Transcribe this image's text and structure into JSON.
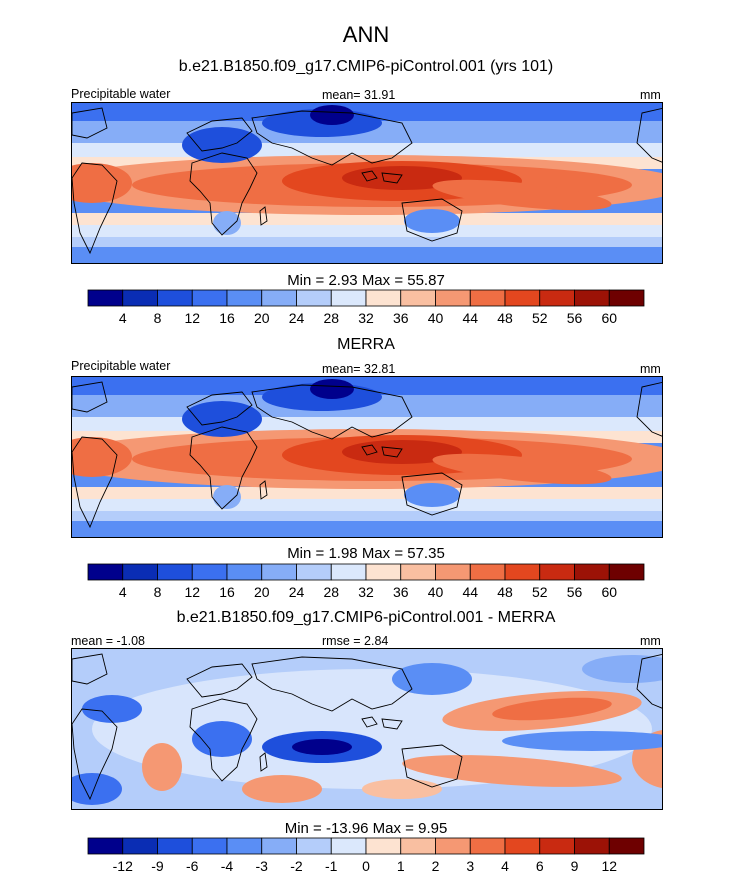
{
  "figure_title": "ANN",
  "chart_data": [
    {
      "type": "heatmap",
      "title": "b.e21.B1850.f09_g17.CMIP6-piControl.001 (yrs 101)",
      "left_label": "Precipitable water",
      "center_label": "mean=  31.91",
      "units": "mm",
      "stats": "Min =   2.93 Max =  55.87",
      "colorbar_ticks": [
        "4",
        "8",
        "12",
        "16",
        "20",
        "24",
        "28",
        "32",
        "36",
        "40",
        "44",
        "48",
        "52",
        "56",
        "60"
      ],
      "colors": [
        "#00008c",
        "#0a2db4",
        "#1e4fdc",
        "#3b70f0",
        "#5a8ef5",
        "#86adf7",
        "#b4cdfa",
        "#dbe8fc",
        "#fde3d1",
        "#f9bfa1",
        "#f59873",
        "#ef6e44",
        "#e3471f",
        "#c92a11",
        "#9c1206",
        "#6e0000"
      ]
    },
    {
      "type": "heatmap",
      "title": "MERRA",
      "left_label": "Precipitable water",
      "center_label": "mean=  32.81",
      "units": "mm",
      "stats": "Min =   1.98 Max =  57.35",
      "colorbar_ticks": [
        "4",
        "8",
        "12",
        "16",
        "20",
        "24",
        "28",
        "32",
        "36",
        "40",
        "44",
        "48",
        "52",
        "56",
        "60"
      ],
      "colors": [
        "#00008c",
        "#0a2db4",
        "#1e4fdc",
        "#3b70f0",
        "#5a8ef5",
        "#86adf7",
        "#b4cdfa",
        "#dbe8fc",
        "#fde3d1",
        "#f9bfa1",
        "#f59873",
        "#ef6e44",
        "#e3471f",
        "#c92a11",
        "#9c1206",
        "#6e0000"
      ]
    },
    {
      "type": "heatmap",
      "title": "b.e21.B1850.f09_g17.CMIP6-piControl.001 - MERRA",
      "left_label": "mean =  -1.08",
      "center_label": "rmse =   2.84",
      "units": "mm",
      "stats": "Min = -13.96 Max =   9.95",
      "colorbar_ticks": [
        "-12",
        "-9",
        "-6",
        "-4",
        "-3",
        "-2",
        "-1",
        "0",
        "1",
        "2",
        "3",
        "4",
        "6",
        "9",
        "12"
      ],
      "colors": [
        "#00008c",
        "#0a2db4",
        "#1e4fdc",
        "#3b70f0",
        "#5a8ef5",
        "#86adf7",
        "#b4cdfa",
        "#dbe8fc",
        "#fde3d1",
        "#f9bfa1",
        "#f59873",
        "#ef6e44",
        "#e3471f",
        "#c92a11",
        "#9c1206",
        "#6e0000"
      ]
    }
  ]
}
